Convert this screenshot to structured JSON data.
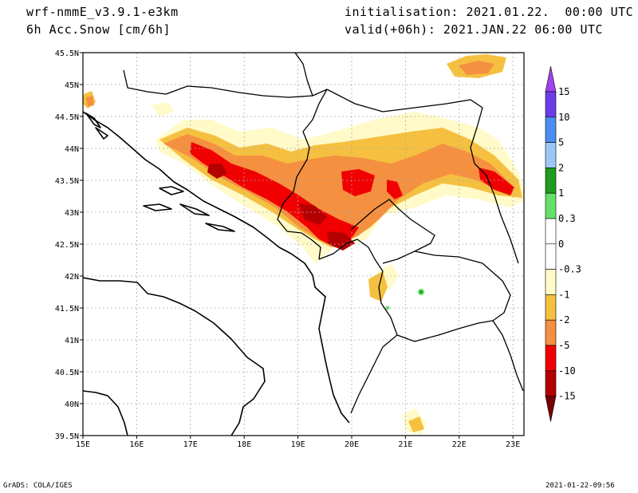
{
  "header": {
    "model": "wrf-nmmE_v3.9.1-e3km",
    "field": "6h Acc.Snow [cm/6h]",
    "init": "initialisation: 2021.01.22.  00:00 UTC",
    "valid": "valid(+06h): 2021.JAN.22 06:00 UTC"
  },
  "footer": {
    "left": "GrADS: COLA/IGES",
    "right": "2021-01-22-09:56"
  },
  "map": {
    "lat_labels": [
      "45.5N",
      "45N",
      "44.5N",
      "44N",
      "43.5N",
      "43N",
      "42.5N",
      "42N",
      "41.5N",
      "41N",
      "40.5N",
      "40N",
      "39.5N"
    ],
    "lon_labels": [
      "15E",
      "16E",
      "17E",
      "18E",
      "19E",
      "20E",
      "21E",
      "22E",
      "23E"
    ],
    "grid": true
  },
  "colorbar": {
    "labels": [
      "15",
      "10",
      "5",
      "2",
      "1",
      "0.3",
      "0",
      "-0.3",
      "-1",
      "-2",
      "-5",
      "-10",
      "-15"
    ],
    "colors": [
      "#6a3de8",
      "#4a8ef0",
      "#9cc8f5",
      "#1e9c1e",
      "#66e066",
      "#ffffff",
      "#ffffff",
      "#fffac8",
      "#f5c040",
      "#f59040",
      "#f00000",
      "#b40000",
      "#780000"
    ],
    "top_arrow_color": "#a040f0",
    "bottom_arrow_color": "#780000"
  }
}
